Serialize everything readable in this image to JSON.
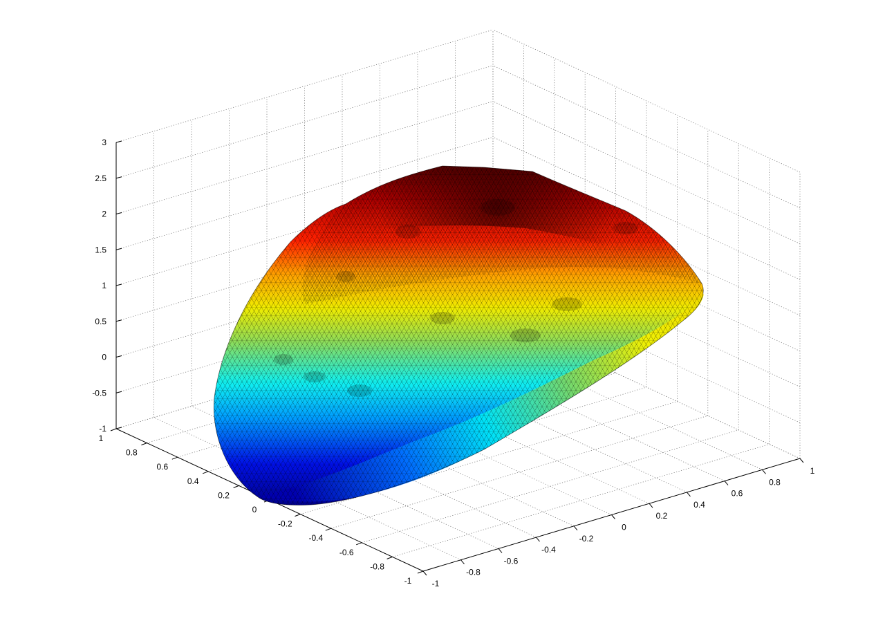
{
  "chart_data": {
    "type": "surface",
    "title": "",
    "xlabel": "",
    "ylabel": "",
    "zlabel": "",
    "xlim": [
      -1,
      1
    ],
    "ylim": [
      -1,
      1
    ],
    "zlim": [
      -1,
      3
    ],
    "grid": true,
    "colormap": "jet",
    "mesh": "triangulated",
    "x_ticks": [
      "-1",
      "-0.8",
      "-0.6",
      "-0.4",
      "-0.2",
      "0",
      "0.2",
      "0.4",
      "0.6",
      "0.8",
      "1"
    ],
    "y_ticks": [
      "-1",
      "-0.8",
      "-0.6",
      "-0.4",
      "-0.2",
      "0",
      "0.2",
      "0.4",
      "0.6",
      "0.8",
      "1"
    ],
    "z_ticks": [
      "-1",
      "-0.5",
      "0",
      "0.5",
      "1",
      "1.5",
      "2",
      "2.5",
      "3"
    ],
    "surface": {
      "description_points": [
        {
          "x": -0.9,
          "y": -0.1,
          "z": -0.95
        },
        {
          "x": 0.0,
          "y": 0.0,
          "z": 2.6
        },
        {
          "x": 0.9,
          "y": 0.6,
          "z": 1.1
        }
      ]
    },
    "colors": {
      "low": "#0000b4",
      "mid_low": "#00c8ff",
      "mid": "#f0f000",
      "mid_high": "#ff2000",
      "high": "#6e0000"
    }
  }
}
